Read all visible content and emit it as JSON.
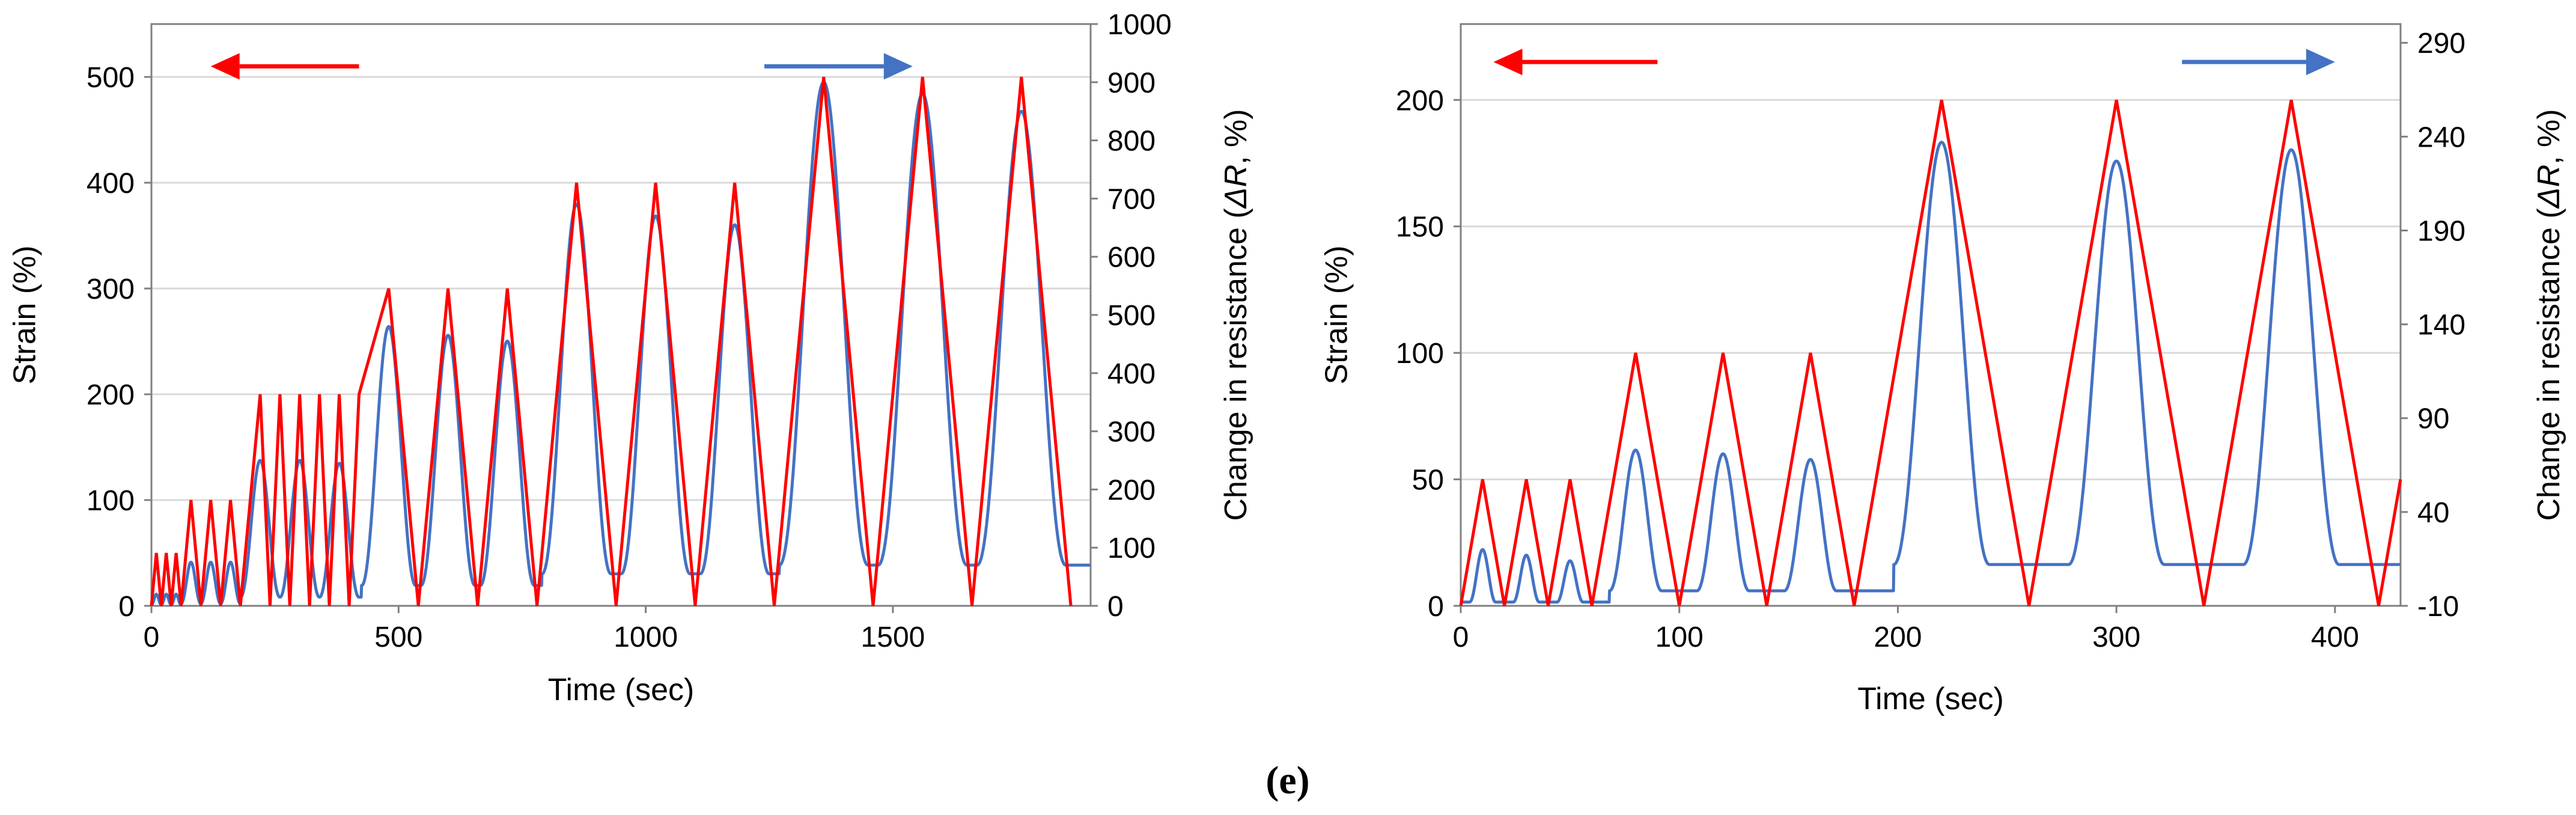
{
  "caption": "(e)",
  "colors": {
    "strain": "#ff0000",
    "resistance": "#4472c4",
    "grid": "#d9d9d9",
    "axis": "#808080"
  },
  "chart_data": [
    {
      "type": "line",
      "title": "",
      "xlabel": "Time (sec)",
      "ylabel": "Strain (%)",
      "y2label_prefix": "Change in resistance (",
      "y2label_italic": "ΔR",
      "y2label_suffix": ", %)",
      "xlim": [
        0,
        1900
      ],
      "ylim": [
        0,
        550
      ],
      "y2lim": [
        0,
        1000
      ],
      "xticks": [
        0,
        500,
        1000,
        1500
      ],
      "yticks": [
        0,
        100,
        200,
        300,
        400,
        500
      ],
      "y2ticks": [
        0,
        100,
        200,
        300,
        400,
        500,
        600,
        700,
        800,
        900,
        1000
      ],
      "grid": true,
      "arrows": [
        {
          "direction": "left",
          "color": "#ff0000",
          "x_from": 420,
          "x_to": 120,
          "y": 510
        },
        {
          "direction": "right",
          "color": "#4472c4",
          "x_from": 1240,
          "x_to": 1540,
          "y": 510
        }
      ],
      "series": [
        {
          "name": "Strain",
          "axis": "left",
          "x": [
            0,
            10,
            20,
            30,
            40,
            50,
            60,
            70,
            80,
            100,
            120,
            140,
            160,
            180,
            200,
            220,
            240,
            260,
            280,
            300,
            320,
            340,
            360,
            380,
            400,
            420,
            480,
            540,
            600,
            660,
            720,
            780,
            860,
            940,
            1020,
            1100,
            1180,
            1260,
            1360,
            1460,
            1560,
            1660,
            1760,
            1860
          ],
          "y": [
            0,
            50,
            0,
            50,
            0,
            50,
            0,
            50,
            100,
            0,
            100,
            0,
            100,
            0,
            100,
            200,
            0,
            200,
            0,
            200,
            0,
            200,
            0,
            200,
            0,
            200,
            300,
            0,
            300,
            0,
            300,
            0,
            400,
            0,
            400,
            0,
            400,
            0,
            500,
            0,
            500,
            0,
            500,
            0
          ]
        },
        {
          "name": "Change in resistance",
          "axis": "right",
          "cycles": [
            {
              "peak_t": 10,
              "peak": 20,
              "width": 10,
              "base": 2
            },
            {
              "peak_t": 30,
              "peak": 20,
              "width": 10,
              "base": 2
            },
            {
              "peak_t": 50,
              "peak": 20,
              "width": 10,
              "base": 2
            },
            {
              "peak_t": 80,
              "peak": 75,
              "width": 20,
              "base": 4
            },
            {
              "peak_t": 120,
              "peak": 75,
              "width": 20,
              "base": 4
            },
            {
              "peak_t": 160,
              "peak": 75,
              "width": 20,
              "base": 4
            },
            {
              "peak_t": 220,
              "peak": 250,
              "width": 40,
              "base": 15
            },
            {
              "peak_t": 300,
              "peak": 250,
              "width": 40,
              "base": 15
            },
            {
              "peak_t": 380,
              "peak": 245,
              "width": 40,
              "base": 15
            },
            {
              "peak_t": 480,
              "peak": 480,
              "width": 55,
              "base": 35
            },
            {
              "peak_t": 600,
              "peak": 465,
              "width": 55,
              "base": 35
            },
            {
              "peak_t": 720,
              "peak": 455,
              "width": 55,
              "base": 35
            },
            {
              "peak_t": 860,
              "peak": 690,
              "width": 70,
              "base": 55
            },
            {
              "peak_t": 1020,
              "peak": 670,
              "width": 70,
              "base": 55
            },
            {
              "peak_t": 1180,
              "peak": 655,
              "width": 70,
              "base": 55
            },
            {
              "peak_t": 1360,
              "peak": 900,
              "width": 90,
              "base": 70
            },
            {
              "peak_t": 1560,
              "peak": 880,
              "width": 90,
              "base": 70
            },
            {
              "peak_t": 1760,
              "peak": 850,
              "width": 90,
              "base": 70
            }
          ]
        }
      ]
    },
    {
      "type": "line",
      "title": "",
      "xlabel": "Time (sec)",
      "ylabel": "Strain (%)",
      "y2label_prefix": "Change in resistance (",
      "y2label_italic": "ΔR",
      "y2label_suffix": ", %)",
      "xlim": [
        0,
        430
      ],
      "ylim": [
        0,
        230
      ],
      "y2lim": [
        -10,
        300
      ],
      "xticks": [
        0,
        100,
        200,
        300,
        400
      ],
      "yticks": [
        0,
        50,
        100,
        150,
        200
      ],
      "y2ticks": [
        -10,
        40,
        90,
        140,
        190,
        240,
        290
      ],
      "grid": true,
      "arrows": [
        {
          "direction": "left",
          "color": "#ff0000",
          "x_from": 90,
          "x_to": 15,
          "y": 215
        },
        {
          "direction": "right",
          "color": "#4472c4",
          "x_from": 330,
          "x_to": 400,
          "y": 215
        }
      ],
      "series": [
        {
          "name": "Strain",
          "axis": "left",
          "x": [
            0,
            10,
            20,
            30,
            40,
            50,
            60,
            80,
            100,
            120,
            140,
            160,
            180,
            220,
            260,
            300,
            340,
            380,
            420,
            430
          ],
          "y": [
            0,
            50,
            0,
            50,
            0,
            50,
            0,
            100,
            0,
            100,
            0,
            100,
            0,
            200,
            0,
            200,
            0,
            200,
            0,
            50
          ]
        },
        {
          "name": "Change in resistance",
          "axis": "right",
          "cycles": [
            {
              "peak_t": 10,
              "peak": 20,
              "width": 6,
              "base": -8
            },
            {
              "peak_t": 30,
              "peak": 17,
              "width": 6,
              "base": -8
            },
            {
              "peak_t": 50,
              "peak": 14,
              "width": 6,
              "base": -8
            },
            {
              "peak_t": 80,
              "peak": 73,
              "width": 12,
              "base": -2
            },
            {
              "peak_t": 120,
              "peak": 71,
              "width": 12,
              "base": -2
            },
            {
              "peak_t": 160,
              "peak": 68,
              "width": 12,
              "base": -2
            },
            {
              "peak_t": 220,
              "peak": 237,
              "width": 22,
              "base": 12
            },
            {
              "peak_t": 300,
              "peak": 227,
              "width": 22,
              "base": 12
            },
            {
              "peak_t": 380,
              "peak": 233,
              "width": 22,
              "base": 12
            }
          ]
        }
      ]
    }
  ]
}
